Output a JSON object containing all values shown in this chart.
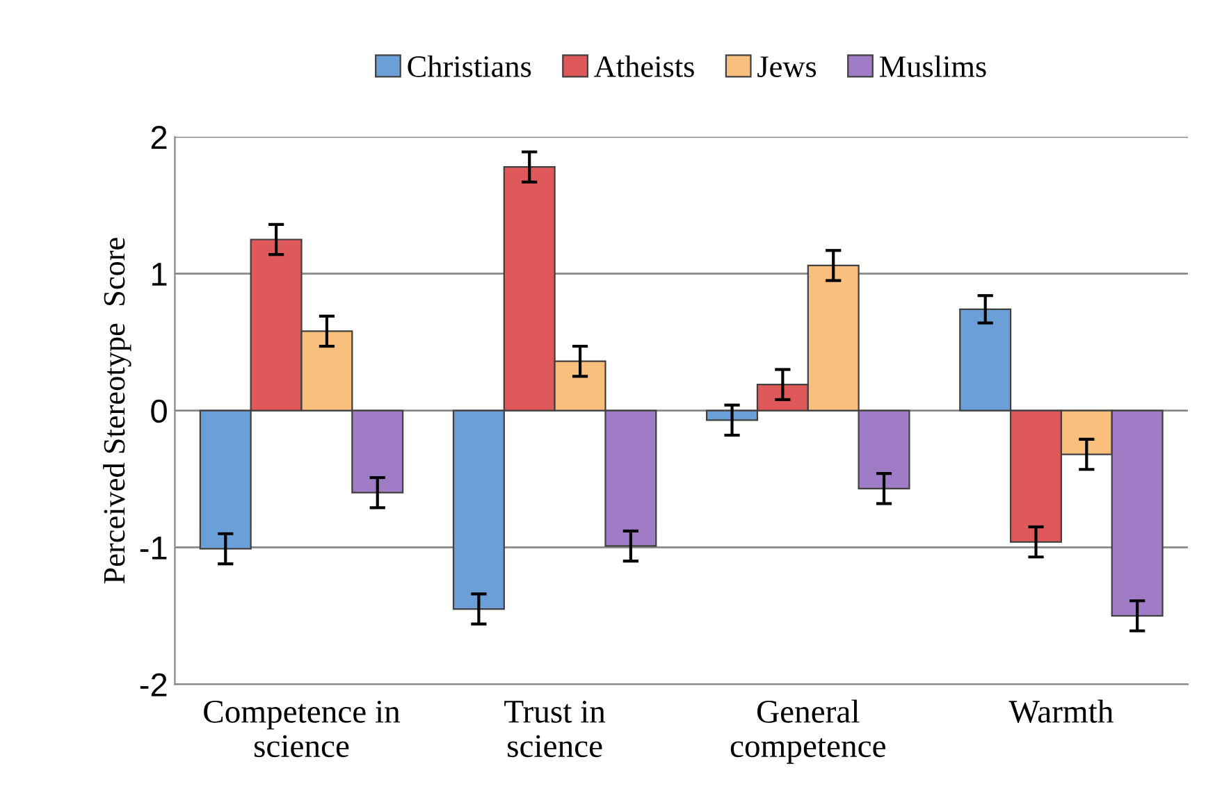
{
  "chart_data": {
    "type": "bar",
    "ylabel": "Perceived Stereotype  Score",
    "categories": [
      "Competence in\nscience",
      "Trust in\nscience",
      "General\ncompetence",
      "Warmth"
    ],
    "series": [
      {
        "name": "Christians",
        "color": "#6a9fd8",
        "values": [
          -1.01,
          -1.45,
          -0.07,
          0.74
        ],
        "errors": [
          0.11,
          0.11,
          0.11,
          0.1
        ]
      },
      {
        "name": "Atheists",
        "color": "#e0595a",
        "values": [
          1.25,
          1.78,
          0.19,
          -0.96
        ],
        "errors": [
          0.11,
          0.11,
          0.11,
          0.11
        ]
      },
      {
        "name": "Jews",
        "color": "#f9bf7c",
        "values": [
          0.58,
          0.36,
          1.06,
          -0.32
        ],
        "errors": [
          0.11,
          0.11,
          0.11,
          0.11
        ]
      },
      {
        "name": "Muslims",
        "color": "#a07cc6",
        "values": [
          -0.6,
          -0.99,
          -0.57,
          -1.5
        ],
        "errors": [
          0.11,
          0.11,
          0.11,
          0.11
        ]
      }
    ],
    "ylim": [
      -2,
      2
    ],
    "yticks": [
      -2,
      -1,
      0,
      1,
      2
    ],
    "grid": "y",
    "legend": "top"
  }
}
